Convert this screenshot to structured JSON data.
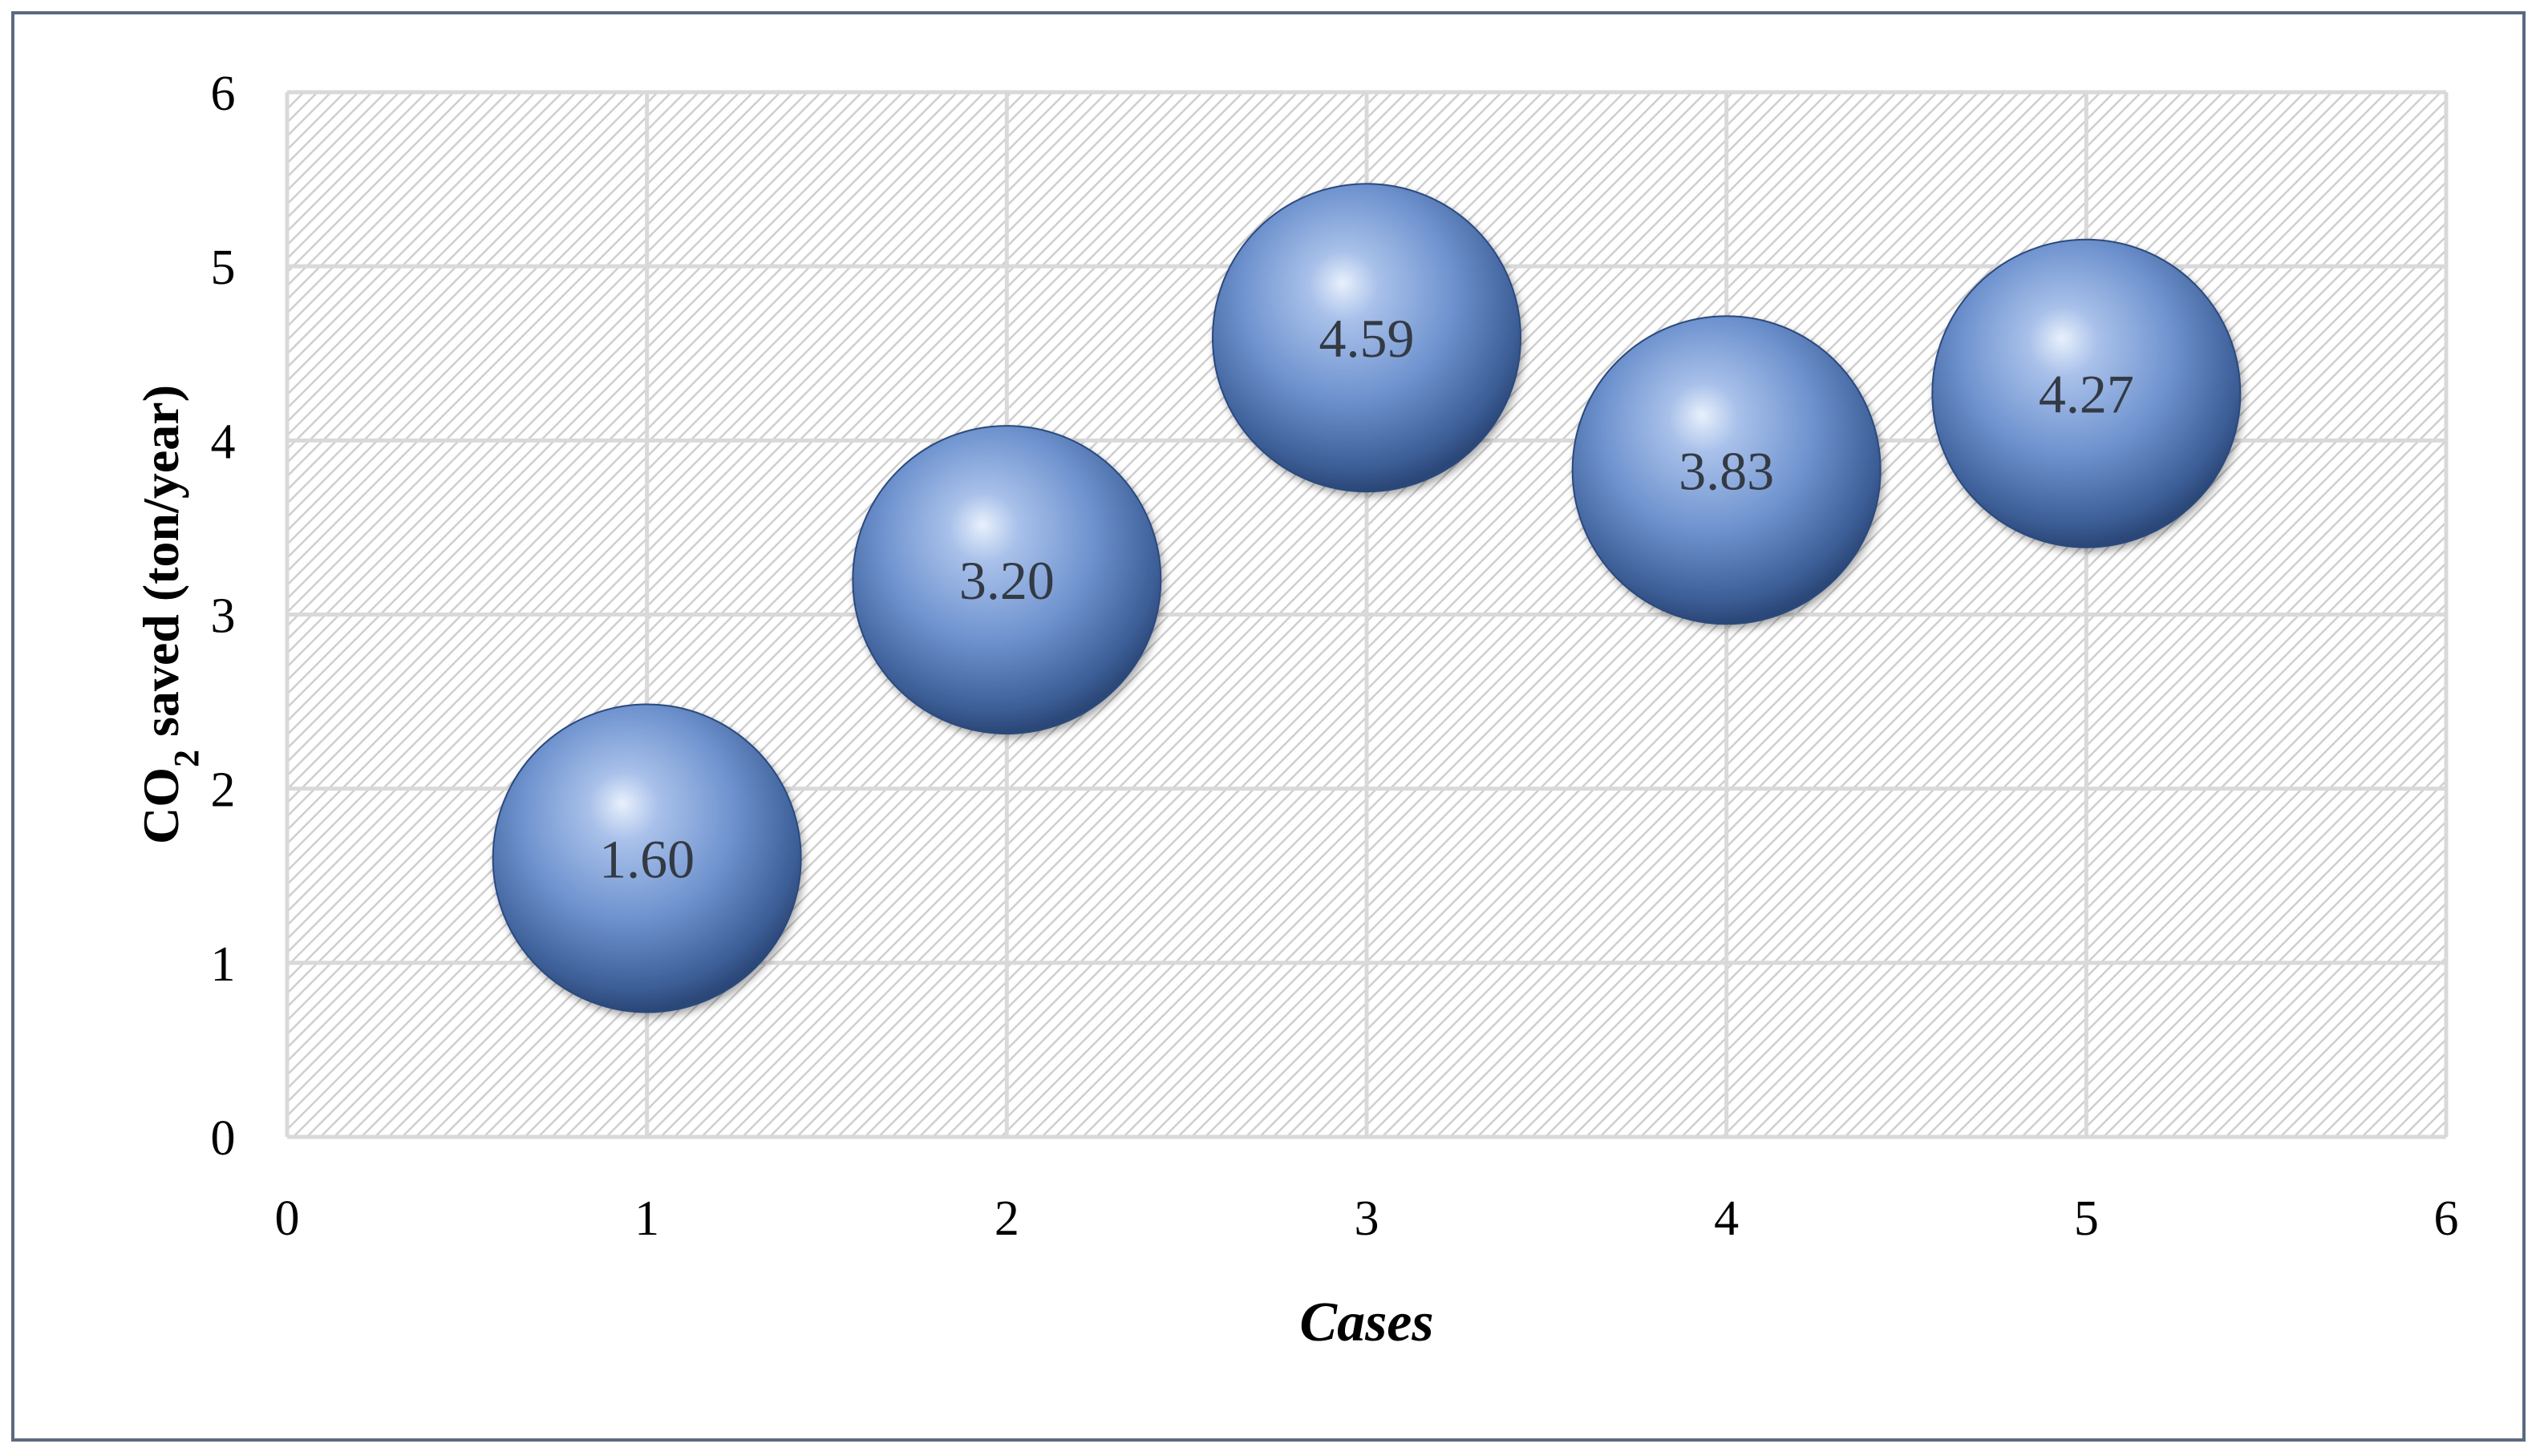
{
  "chart_data": {
    "type": "bubble",
    "x": [
      1,
      2,
      3,
      4,
      5
    ],
    "y": [
      1.6,
      3.2,
      4.59,
      3.83,
      4.27
    ],
    "data_labels": [
      "1.60",
      "3.20",
      "4.59",
      "3.83",
      "4.27"
    ],
    "xlabel": "Cases",
    "ylabel": {
      "prefix": "CO",
      "subscript": "2",
      "suffix": " saved (ton/year)"
    },
    "xlim": [
      0,
      6
    ],
    "ylim": [
      0,
      6
    ],
    "xticks": [
      "0",
      "1",
      "2",
      "3",
      "4",
      "5",
      "6"
    ],
    "yticks": [
      "0",
      "1",
      "2",
      "3",
      "4",
      "5",
      "6"
    ],
    "grid": true,
    "legend": "none",
    "colors": {
      "bubble_light": "#c9daf5",
      "bubble_mid": "#6f93cf",
      "bubble_dark": "#2f4f86",
      "grid": "#d9d9d9",
      "hatch": "#cfcfcf",
      "frame": "#5a6a80"
    }
  }
}
